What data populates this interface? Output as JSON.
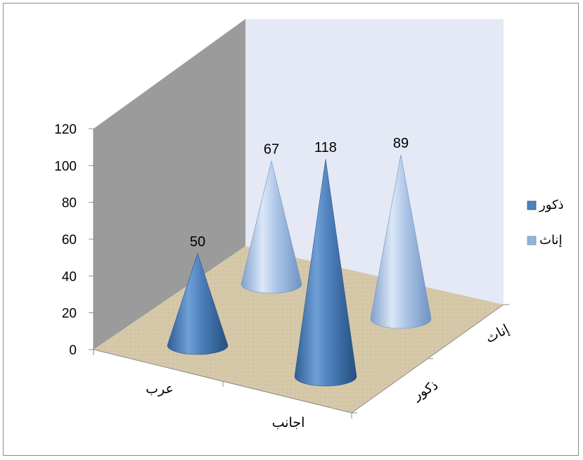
{
  "chart_data": {
    "type": "3d-cone",
    "y_ticks": [
      "0",
      "20",
      "40",
      "60",
      "80",
      "100",
      "120"
    ],
    "ylim": [
      0,
      120
    ],
    "x_categories": [
      "عرب",
      "اجانب"
    ],
    "depth_categories": [
      "ذكور",
      "إناث"
    ],
    "series": [
      {
        "name": "ذكور",
        "color": "#4f81bd",
        "values": [
          50,
          118
        ]
      },
      {
        "name": "إناث",
        "color": "#95b3d7",
        "values": [
          67,
          89
        ]
      }
    ],
    "points": [
      {
        "category": "عرب",
        "series": "إناث",
        "value": 67,
        "label": "67"
      },
      {
        "category": "اجانب",
        "series": "إناث",
        "value": 89,
        "label": "89"
      },
      {
        "category": "عرب",
        "series": "ذكور",
        "value": 50,
        "label": "50"
      },
      {
        "category": "اجانب",
        "series": "ذكور",
        "value": 118,
        "label": "118"
      }
    ],
    "legend": {
      "position": "right",
      "entries": [
        "ذكور",
        "إناث"
      ]
    },
    "walls": {
      "back_color": "#e4e9f5",
      "side_color": "#9b9b9b",
      "floor_color": "#d5c8a8"
    }
  }
}
